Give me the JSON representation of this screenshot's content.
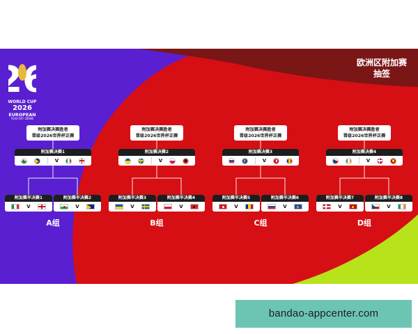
{
  "logo": {
    "line1": "WORLD CUP",
    "line2": "2026",
    "line3": "EUROPEAN",
    "line4": "PLAY-OFF DRAW",
    "fifa": "FIFA"
  },
  "title": {
    "line1": "欧洲区附加赛",
    "line2": "抽签"
  },
  "winner_label": {
    "line1": "附加赛决赛胜者",
    "line2": "晋级2026世界杯正赛"
  },
  "paths": [
    {
      "group": "A组",
      "final": {
        "label": "附加赛决赛1",
        "home": [
          "wales",
          "bosnia"
        ],
        "away": [
          "italy",
          "england"
        ]
      },
      "semis": [
        {
          "label": "附加赛半决赛1",
          "home": "italy",
          "away": "england"
        },
        {
          "label": "附加赛半决赛2",
          "home": "wales",
          "away": "bosnia"
        }
      ]
    },
    {
      "group": "B组",
      "final": {
        "label": "附加赛决赛2",
        "home": [
          "ukraine",
          "sweden"
        ],
        "away": [
          "poland",
          "albania"
        ]
      },
      "semis": [
        {
          "label": "附加赛半决赛3",
          "home": "ukraine",
          "away": "sweden"
        },
        {
          "label": "附加赛半决赛4",
          "home": "poland",
          "away": "albania"
        }
      ]
    },
    {
      "group": "C组",
      "final": {
        "label": "附加赛决赛3",
        "home": [
          "slovakia",
          "kosovo"
        ],
        "away": [
          "turkey",
          "romania"
        ]
      },
      "semis": [
        {
          "label": "附加赛半决赛5",
          "home": "turkey",
          "away": "romania"
        },
        {
          "label": "附加赛半决赛6",
          "home": "slovakia",
          "away": "kosovo"
        }
      ]
    },
    {
      "group": "D组",
      "final": {
        "label": "附加赛决赛4",
        "home": [
          "czechia",
          "ireland"
        ],
        "away": [
          "denmark",
          "north-macedonia"
        ]
      },
      "semis": [
        {
          "label": "附加赛半决赛7",
          "home": "denmark",
          "away": "north-macedonia"
        },
        {
          "label": "附加赛半决赛8",
          "home": "czechia",
          "away": "ireland"
        }
      ]
    }
  ],
  "vs_symbol": "V",
  "watermark": "bandao-appcenter.com",
  "colors": {
    "purple": "#5a1fd0",
    "red": "#d60f14",
    "dark_red": "#7a1616",
    "lime": "#b8e21a",
    "watermark_bg": "#6cc5b3"
  }
}
